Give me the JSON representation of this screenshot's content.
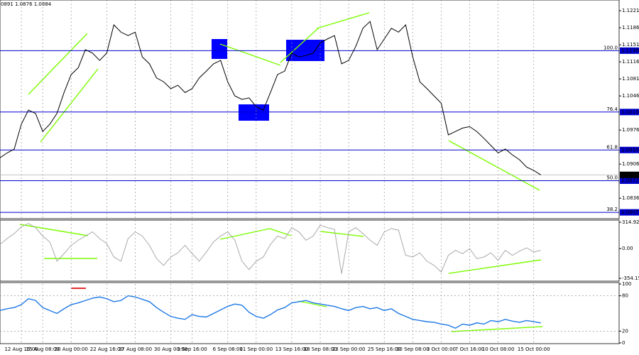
{
  "header_text": "0891 1.0876 1.0884",
  "chart_data": [
    {
      "type": "line",
      "color": "#000000",
      "values": [
        1.0919,
        1.0929,
        1.0937,
        1.0988,
        1.1017,
        1.101,
        1.0973,
        1.0988,
        1.101,
        1.1053,
        1.109,
        1.1104,
        1.1141,
        1.1134,
        1.1119,
        1.1134,
        1.1192,
        1.1177,
        1.117,
        1.1177,
        1.1126,
        1.1112,
        1.1083,
        1.1075,
        1.1061,
        1.1068,
        1.1053,
        1.1061,
        1.1083,
        1.1097,
        1.1112,
        1.1119,
        1.1075,
        1.1046,
        1.1039,
        1.1042,
        1.1024,
        1.1017,
        1.1053,
        1.109,
        1.1097,
        1.1134,
        1.1126,
        1.1129,
        1.1134,
        1.1155,
        1.1163,
        1.117,
        1.1112,
        1.1119,
        1.1148,
        1.1185,
        1.1199,
        1.1141,
        1.1163,
        1.1185,
        1.1177,
        1.1192,
        1.1126,
        1.1075,
        1.1061,
        1.1046,
        1.1031,
        1.0966,
        1.0973,
        1.098,
        1.0983,
        1.0973,
        1.0959,
        1.0944,
        1.0929,
        1.0937,
        1.0925,
        1.0915,
        1.09,
        1.0893,
        1.0884
      ],
      "xlim": [
        0,
        87
      ],
      "ylim": [
        1.0794,
        1.1243
      ],
      "yticks": [
        1.1221,
        1.1186,
        1.1151,
        1.1116,
        1.1081,
        1.1046,
        1.0976,
        1.0906,
        1.0836
      ],
      "xticks": [
        {
          "value": 3,
          "label": "12 Aug 16:00"
        },
        {
          "value": 6,
          "label": "15 Aug 08:00"
        },
        {
          "value": 10,
          "label": "20 Aug 00:00"
        },
        {
          "value": 15,
          "label": "22 Aug 16:00"
        },
        {
          "value": 19,
          "label": "27 Aug 08:00"
        },
        {
          "value": 24,
          "label": "30 Aug 00:00"
        },
        {
          "value": 27,
          "label": "3 Sep 16:00"
        },
        {
          "value": 32,
          "label": "6 Sep 08:00"
        },
        {
          "value": 36,
          "label": "11 Sep 00:00"
        },
        {
          "value": 41,
          "label": "13 Sep 16:00"
        },
        {
          "value": 45,
          "label": "18 Sep 08:00"
        },
        {
          "value": 49,
          "label": "23 Sep 00:00"
        },
        {
          "value": 54,
          "label": "25 Sep 16:00"
        },
        {
          "value": 58,
          "label": "30 Sep 08:00"
        },
        {
          "value": 62,
          "label": "3 Oct 00:00"
        },
        {
          "value": 66,
          "label": "7 Oct 16:00"
        },
        {
          "value": 70,
          "label": "10 Oct 08:00"
        },
        {
          "value": 75,
          "label": "15 Oct 00:00"
        }
      ],
      "levels": [
        {
          "value": 1.1139,
          "fib": "100.0"
        },
        {
          "value": 1.1013,
          "fib": "76.4"
        },
        {
          "value": 1.0935,
          "fib": "61.8"
        },
        {
          "value": 1.0872,
          "fib": "50.0"
        },
        {
          "value": 1.0807,
          "fib": "38.2"
        }
      ],
      "current": 1.0884,
      "level_color": "#0000cd"
    },
    {
      "type": "line",
      "color": "#a9a9a9",
      "values": [
        50,
        120,
        180,
        260,
        300,
        250,
        150,
        80,
        -150,
        -60,
        40,
        100,
        150,
        200,
        120,
        60,
        -100,
        -150,
        120,
        200,
        150,
        40,
        -120,
        -200,
        -100,
        -50,
        40,
        -60,
        -150,
        -40,
        80,
        150,
        200,
        100,
        -150,
        -250,
        -150,
        -100,
        50,
        150,
        120,
        250,
        200,
        100,
        150,
        280,
        250,
        230,
        -300,
        200,
        250,
        180,
        100,
        40,
        200,
        240,
        220,
        -80,
        -100,
        -50,
        -150,
        -200,
        -280,
        -80,
        -20,
        -60,
        0,
        -120,
        -100,
        -50,
        -140,
        -20,
        -80,
        -30,
        10,
        -40,
        -20
      ],
      "xlim": [
        0,
        87
      ],
      "ylim": [
        -354.159,
        314.9232
      ],
      "yticks": [
        314.9232,
        {
          "value": 0,
          "label": "0.00"
        },
        -354.159
      ]
    },
    {
      "type": "line",
      "color": "#1e78e6",
      "values": [
        55,
        58,
        60,
        65,
        75,
        72,
        60,
        55,
        50,
        58,
        65,
        68,
        72,
        76,
        78,
        75,
        70,
        72,
        80,
        78,
        74,
        70,
        60,
        52,
        45,
        42,
        40,
        48,
        45,
        44,
        50,
        56,
        62,
        66,
        64,
        52,
        45,
        42,
        48,
        56,
        60,
        68,
        70,
        72,
        68,
        66,
        64,
        62,
        58,
        55,
        60,
        62,
        58,
        60,
        55,
        58,
        50,
        45,
        40,
        38,
        36,
        35,
        32,
        30,
        25,
        32,
        30,
        34,
        32,
        38,
        36,
        40,
        37,
        35,
        38,
        36,
        34
      ],
      "xlim": [
        0,
        87
      ],
      "ylim": [
        0,
        100
      ],
      "yticks": [
        100,
        80,
        20,
        0
      ]
    }
  ]
}
